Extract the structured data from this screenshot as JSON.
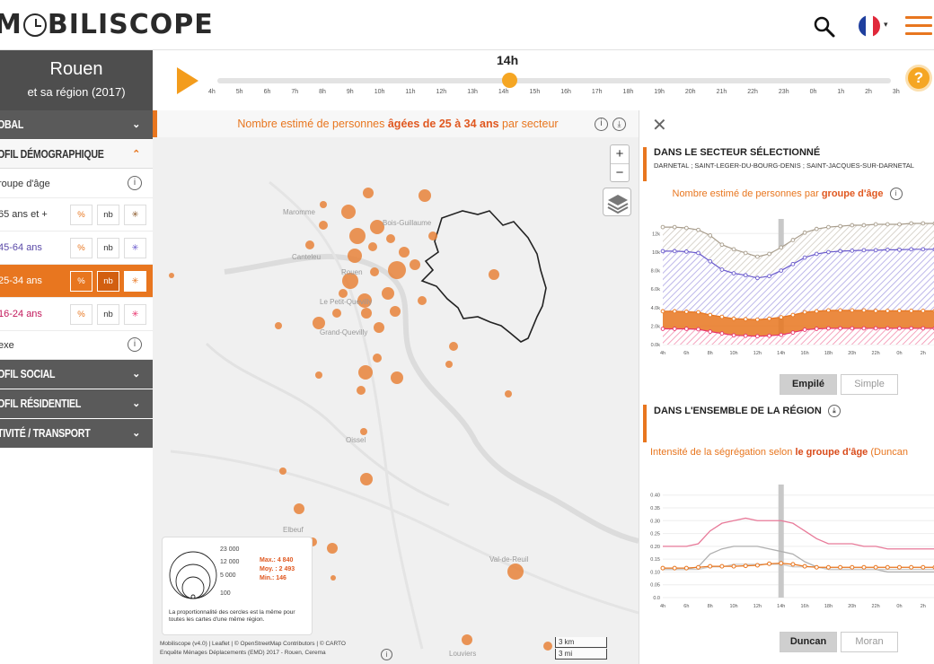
{
  "header": {
    "logo_prefix": "M",
    "logo_suffix": "BILISCOPE",
    "menu_icon": "hamburger-icon",
    "search_icon": "search-icon",
    "flag_icon": "french-flag-icon",
    "caret": "▾"
  },
  "city": {
    "name": "Rouen",
    "subtitle": "et sa région (2017)"
  },
  "timeline": {
    "current": "14h",
    "hours": [
      "4h",
      "5h",
      "6h",
      "7h",
      "8h",
      "9h",
      "10h",
      "11h",
      "12h",
      "13h",
      "14h",
      "15h",
      "16h",
      "17h",
      "18h",
      "19h",
      "20h",
      "21h",
      "22h",
      "23h",
      "0h",
      "1h",
      "2h",
      "3h"
    ],
    "help": "?"
  },
  "sidebar": {
    "sections": [
      {
        "label": "OBAL",
        "chev": "⌄"
      },
      {
        "label": "OFIL DÉMOGRAPHIQUE",
        "chev": "⌃"
      }
    ],
    "group_label": "roupe d'âge",
    "info": "i",
    "rows": [
      {
        "label": "65 ans et +",
        "pct": "%",
        "nb": "nb",
        "star": "✳"
      },
      {
        "label": "45-64 ans",
        "pct": "%",
        "nb": "nb",
        "star": "✳"
      },
      {
        "label": "25-34 ans",
        "pct": "%",
        "nb": "nb",
        "star": "✳"
      },
      {
        "label": "16-24 ans",
        "pct": "%",
        "nb": "nb",
        "star": "✳"
      }
    ],
    "sexe_label": "exe",
    "bottom_sections": [
      {
        "label": "OFIL SOCIAL",
        "chev": "⌄"
      },
      {
        "label": "OFIL RÉSIDENTIEL",
        "chev": "⌄"
      },
      {
        "label": "TIVITÉ / TRANSPORT",
        "chev": "⌄"
      }
    ]
  },
  "map": {
    "title_pre": "Nombre estimé de personnes ",
    "title_bold": "âgées de 25 à 34 ans",
    "title_post": " par secteur",
    "zoom_in": "+",
    "zoom_out": "−",
    "places": [
      "Maromme",
      "Bois-Guillaume",
      "Rouen",
      "Canteleu",
      "Le Petit-Quevilly",
      "Grand-Quevilly",
      "Oissel",
      "Elbeuf",
      "Val-de-Reuil",
      "Louviers"
    ],
    "legend": {
      "values": [
        "23 000",
        "12 000",
        "5 000",
        "100"
      ],
      "max": "Max.: 4 840",
      "moy": "Moy. : 2 493",
      "min": "Min.: 146",
      "note": "La proportionnalité des cercles est la même pour toutes les cartes d'une même région."
    },
    "attribution_1": "Mobiliscope (v4.0) | Leaflet | © OpenStreetMap Contributors | © CARTO",
    "attribution_2": "Enquête Ménages Déplacements (EMD) 2017 - Rouen, Cerema",
    "scale_km": "3 km",
    "scale_mi": "3 mi"
  },
  "panel": {
    "close": "✕",
    "sector_title": "DANS LE SECTEUR SÉLECTIONNÉ",
    "sector_names": "DARNETAL ; SAINT-LEGER-DU-BOURG-DENIS ; SAINT-JACQUES-SUR-DARNETAL",
    "chart1_title_pre": "Nombre estimé de personnes par ",
    "chart1_title_bold": "groupe d'âge",
    "btn_stacked": "Empilé",
    "btn_simple": "Simple",
    "region_title": "DANS L'ENSEMBLE DE LA RÉGION",
    "chart2_title_pre": "Intensité de la ségrégation selon ",
    "chart2_title_bold": "le groupe d'âge",
    "chart2_title_post": " (Duncan",
    "btn_duncan": "Duncan",
    "btn_moran": "Moran"
  },
  "chart_data": [
    {
      "type": "area",
      "title": "Nombre estimé de personnes par groupe d'âge",
      "x": [
        "4h",
        "5h",
        "6h",
        "7h",
        "8h",
        "9h",
        "10h",
        "11h",
        "12h",
        "13h",
        "14h",
        "15h",
        "16h",
        "17h",
        "18h",
        "19h",
        "20h",
        "21h",
        "22h",
        "23h",
        "0h",
        "1h",
        "2h",
        "3h"
      ],
      "ytick_labels": [
        "0.0k",
        "2.0k",
        "4.0k",
        "6.0k",
        "8.0k",
        "10k",
        "12k"
      ],
      "ylim": [
        0,
        13000
      ],
      "xtick_labels": [
        "4h",
        "6h",
        "8h",
        "10h",
        "12h",
        "14h",
        "16h",
        "18h",
        "20h",
        "22h",
        "0h",
        "2h"
      ],
      "highlight": "14h",
      "series": [
        {
          "color": "#e8336d",
          "values": [
            1700,
            1700,
            1700,
            1650,
            1400,
            1200,
            1000,
            950,
            900,
            950,
            1050,
            1300,
            1600,
            1700,
            1750,
            1750,
            1750,
            1750,
            1750,
            1750,
            1750,
            1750,
            1750,
            1750
          ]
        },
        {
          "color": "#e8761f",
          "values": [
            3600,
            3600,
            3550,
            3500,
            3200,
            3000,
            2800,
            2750,
            2700,
            2800,
            2950,
            3200,
            3500,
            3600,
            3700,
            3700,
            3700,
            3700,
            3650,
            3650,
            3650,
            3650,
            3650,
            3650
          ]
        },
        {
          "color": "#6a5acd",
          "values": [
            10100,
            10100,
            10050,
            9900,
            9000,
            8100,
            7700,
            7500,
            7200,
            7400,
            8000,
            8700,
            9400,
            9800,
            10000,
            10100,
            10150,
            10200,
            10200,
            10250,
            10250,
            10300,
            10300,
            10300
          ]
        },
        {
          "color": "#a89d8c",
          "values": [
            12700,
            12700,
            12600,
            12400,
            11800,
            10800,
            10300,
            9900,
            9500,
            9800,
            10500,
            11300,
            12100,
            12500,
            12700,
            12800,
            12900,
            12900,
            13000,
            13000,
            13000,
            13100,
            13100,
            13100
          ]
        }
      ]
    },
    {
      "type": "line",
      "title": "Intensité de la ségrégation selon le groupe d'âge (Duncan",
      "x": [
        "4h",
        "5h",
        "6h",
        "7h",
        "8h",
        "9h",
        "10h",
        "11h",
        "12h",
        "13h",
        "14h",
        "15h",
        "16h",
        "17h",
        "18h",
        "19h",
        "20h",
        "21h",
        "22h",
        "23h",
        "0h",
        "1h",
        "2h",
        "3h"
      ],
      "ytick_labels": [
        "0.0",
        "0.05",
        "0.10",
        "0.15",
        "0.20",
        "0.25",
        "0.30",
        "0.35",
        "0.40"
      ],
      "ylim": [
        0,
        0.42
      ],
      "xtick_labels": [
        "4h",
        "6h",
        "8h",
        "10h",
        "12h",
        "14h",
        "16h",
        "18h",
        "20h",
        "22h",
        "0h",
        "2h"
      ],
      "highlight": "14h",
      "series": [
        {
          "color": "#e87a99",
          "values": [
            0.2,
            0.2,
            0.2,
            0.21,
            0.26,
            0.29,
            0.3,
            0.31,
            0.3,
            0.3,
            0.3,
            0.29,
            0.26,
            0.23,
            0.21,
            0.21,
            0.21,
            0.2,
            0.2,
            0.19,
            0.19,
            0.19,
            0.19,
            0.19
          ]
        },
        {
          "color": "#b0b0b0",
          "values": [
            0.11,
            0.11,
            0.11,
            0.12,
            0.17,
            0.19,
            0.2,
            0.2,
            0.2,
            0.19,
            0.18,
            0.17,
            0.14,
            0.12,
            0.11,
            0.11,
            0.11,
            0.11,
            0.11,
            0.1,
            0.1,
            0.1,
            0.1,
            0.1
          ]
        },
        {
          "color": "#cccccc",
          "values": [
            0.11,
            0.11,
            0.11,
            0.11,
            0.12,
            0.12,
            0.13,
            0.13,
            0.13,
            0.13,
            0.13,
            0.12,
            0.12,
            0.12,
            0.11,
            0.11,
            0.11,
            0.11,
            0.11,
            0.11,
            0.11,
            0.11,
            0.11,
            0.11
          ]
        },
        {
          "color": "#e8761f",
          "values": [
            0.115,
            0.115,
            0.115,
            0.118,
            0.122,
            0.122,
            0.122,
            0.124,
            0.126,
            0.132,
            0.134,
            0.13,
            0.122,
            0.118,
            0.118,
            0.118,
            0.118,
            0.118,
            0.118,
            0.118,
            0.118,
            0.118,
            0.118,
            0.118
          ]
        }
      ]
    }
  ]
}
